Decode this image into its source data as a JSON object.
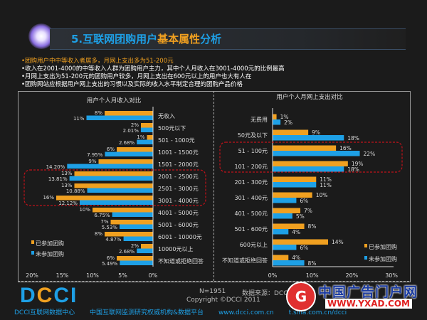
{
  "header": {
    "title_part1": "5.互联网团购用户",
    "title_part2": "基本属性",
    "title_part3": "分析"
  },
  "bullets": [
    "•团购用户中中等收入者居多，月网上支出多为51-200元",
    "•收入在2001-4000的中等收入人群为团购用户主力，其中个人月收入在3001-4000元的比例最高",
    "•月网上支出为51-200元的团购用户较多，月网上支出在600元以上的用户也大有人在",
    "•团购网站应根据用户网上支出的习惯以及实际的收入水平制定合理的团购产品价格"
  ],
  "colors": {
    "participated": "#f0a020",
    "not_participated": "#1ea0e6",
    "highlight": "#c0121a"
  },
  "chart_data": [
    {
      "type": "bar",
      "orientation": "horizontal",
      "title": "用户个人月收入对比",
      "categories": [
        "无收入",
        "500元以下",
        "501 - 1000元",
        "1001 - 1500元",
        "1501 - 2000元",
        "2001 - 2500元",
        "2501 - 3000元",
        "3001 - 4000元",
        "4001 - 5000元",
        "5001 - 6000元",
        "6001 - 10000元",
        "10000元以上",
        "不知道或拒绝回答"
      ],
      "series": [
        {
          "name": "已参加团购",
          "values": [
            8,
            2,
            1,
            6,
            9,
            13,
            13,
            16,
            10,
            7,
            8,
            2,
            6
          ],
          "labels": [
            "8%",
            "2%",
            "1%",
            "6%",
            "9%",
            "13%",
            "13%",
            "16%",
            "10%",
            "7%",
            "8%",
            "2%",
            "6%"
          ]
        },
        {
          "name": "未参加团购",
          "values": [
            11,
            2.01,
            2.68,
            7.95,
            14.2,
            13.81,
            10.88,
            12.12,
            6.75,
            5.53,
            4.87,
            2.68,
            5.49
          ],
          "labels": [
            "11%",
            "2.01%",
            "2.68%",
            "7.95%",
            "14.20%",
            "13.81%",
            "10.88%",
            "12.12%",
            "6.75%",
            "5.53%",
            "4.87%",
            "2.68%",
            "5.49%"
          ]
        }
      ],
      "xlim": [
        0,
        20
      ],
      "x_reversed": true,
      "xticks": [
        "20%",
        "15%",
        "10%",
        "5%",
        "0%"
      ],
      "legend": "bottom-left",
      "highlighted_categories": [
        "2001 - 2500元",
        "2501 - 3000元",
        "3001 - 4000元"
      ]
    },
    {
      "type": "bar",
      "orientation": "horizontal",
      "title": "用户个人月网上支出对比",
      "categories": [
        "无费用",
        "50元及以下",
        "51 - 100元",
        "101 - 200元",
        "201 - 300元",
        "301 - 400元",
        "401 - 500元",
        "501 - 600元",
        "600元以上",
        "不知道或拒绝回答"
      ],
      "series": [
        {
          "name": "已参加团购",
          "values": [
            1,
            9,
            16,
            19,
            11,
            10,
            7,
            8,
            14,
            4
          ],
          "labels": [
            "1%",
            "9%",
            "16%",
            "19%",
            "11%",
            "10%",
            "7%",
            "8%",
            "14%",
            "4%"
          ]
        },
        {
          "name": "未参加团购",
          "values": [
            2,
            18,
            22,
            18,
            11,
            6,
            5,
            4,
            6,
            8
          ],
          "labels": [
            "2%",
            "18%",
            "22%",
            "18%",
            "11%",
            "6%",
            "5%",
            "4%",
            "6%",
            "8%"
          ]
        }
      ],
      "xlim": [
        0,
        30
      ],
      "xticks": [
        "0%",
        "10%",
        "20%",
        "30%"
      ],
      "legend": "bottom-right",
      "highlighted_categories": [
        "51 - 100元",
        "101 - 200元"
      ]
    }
  ],
  "footer": {
    "logo": "DCCI",
    "sample": "N=1951",
    "source": "数据来源：DCCI",
    "copyright": "Copyright ©DCCI 2011",
    "bottom_items": [
      "DCCI互联网数据中心",
      "中国互联网监测研究权威机构&数据平台",
      "www.dcci.com.cn",
      "t.sina.com.cn/dcci"
    ]
  },
  "watermark": {
    "name": "中国广告门户网",
    "url": "WWW.YXAD.COM"
  }
}
